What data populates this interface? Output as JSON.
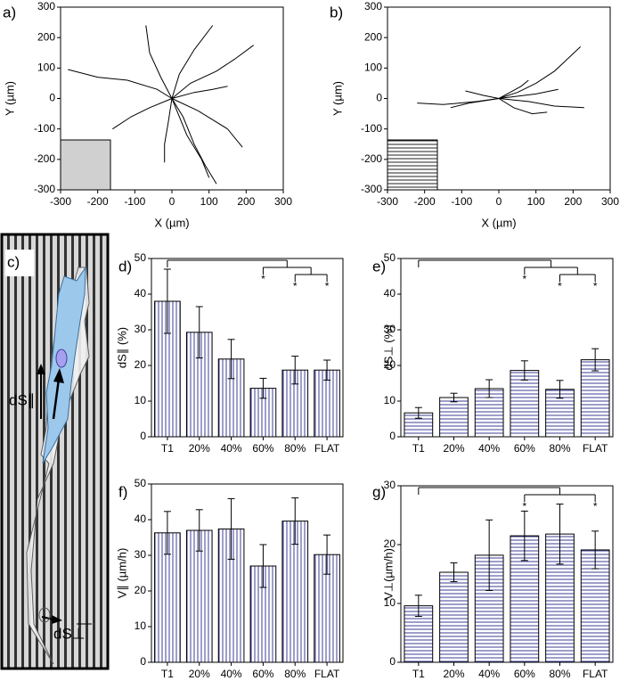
{
  "chart_data": [
    {
      "type": "line",
      "panel_label": "a)",
      "x_label": "X (µm)",
      "y_label": "Y (µm)",
      "color": "#000000",
      "xlim": [
        -300,
        300
      ],
      "ylim": [
        -300,
        300
      ],
      "xticks": [
        -300,
        -200,
        -100,
        0,
        100,
        200,
        300
      ],
      "yticks": [
        -300,
        -200,
        -100,
        0,
        100,
        200,
        300
      ],
      "series": [
        {
          "x": [
            0,
            -40,
            -120,
            -200,
            -280
          ],
          "y": [
            0,
            30,
            60,
            70,
            95
          ]
        },
        {
          "x": [
            0,
            50,
            120,
            170,
            220
          ],
          "y": [
            0,
            50,
            90,
            130,
            175
          ]
        },
        {
          "x": [
            0,
            30,
            60,
            90,
            120
          ],
          "y": [
            0,
            -60,
            -150,
            -220,
            -280
          ]
        },
        {
          "x": [
            0,
            -10,
            -20,
            -20
          ],
          "y": [
            0,
            -80,
            -150,
            -210
          ]
        },
        {
          "x": [
            0,
            20,
            60,
            110
          ],
          "y": [
            0,
            80,
            160,
            240
          ]
        },
        {
          "x": [
            0,
            -30,
            -60,
            -70
          ],
          "y": [
            0,
            70,
            150,
            240
          ]
        },
        {
          "x": [
            0,
            70,
            150,
            190
          ],
          "y": [
            0,
            -40,
            -100,
            -160
          ]
        },
        {
          "x": [
            0,
            -60,
            -110,
            -160
          ],
          "y": [
            0,
            -30,
            -60,
            -100
          ]
        },
        {
          "x": [
            0,
            60,
            110,
            150
          ],
          "y": [
            0,
            20,
            30,
            40
          ]
        },
        {
          "x": [
            0,
            40,
            80,
            100
          ],
          "y": [
            0,
            -120,
            -200,
            -260
          ]
        }
      ]
    },
    {
      "type": "line",
      "panel_label": "b)",
      "x_label": "X (µm)",
      "y_label": "Y (µm)",
      "color": "#000000",
      "xlim": [
        -300,
        300
      ],
      "ylim": [
        -300,
        300
      ],
      "xticks": [
        -300,
        -200,
        -100,
        0,
        100,
        200,
        300
      ],
      "yticks": [
        -300,
        -200,
        -100,
        0,
        100,
        200,
        300
      ],
      "series": [
        {
          "x": [
            0,
            -60,
            -150,
            -220
          ],
          "y": [
            0,
            -10,
            -20,
            -15
          ]
        },
        {
          "x": [
            0,
            50,
            100,
            150,
            220
          ],
          "y": [
            0,
            20,
            50,
            90,
            170
          ]
        },
        {
          "x": [
            0,
            80,
            150,
            230
          ],
          "y": [
            0,
            -10,
            -25,
            -30
          ]
        },
        {
          "x": [
            0,
            -40,
            -90
          ],
          "y": [
            0,
            10,
            25
          ]
        },
        {
          "x": [
            0,
            40,
            90,
            130
          ],
          "y": [
            0,
            -30,
            -50,
            -45
          ]
        },
        {
          "x": [
            0,
            30,
            60,
            80
          ],
          "y": [
            0,
            20,
            40,
            60
          ]
        },
        {
          "x": [
            0,
            -80,
            -130
          ],
          "y": [
            0,
            -15,
            -30
          ]
        },
        {
          "x": [
            0,
            100,
            160
          ],
          "y": [
            0,
            15,
            30
          ]
        }
      ]
    },
    {
      "type": "bar",
      "panel_label": "d)",
      "y_label": "dS∥ (%)",
      "color": "#3c3c96",
      "pattern": "vertical",
      "categories": [
        "T1",
        "20%",
        "40%",
        "60%",
        "80%",
        "FLAT"
      ],
      "values": [
        38,
        29.3,
        21.8,
        13.6,
        18.7,
        18.7
      ],
      "errors": [
        9,
        7.2,
        5.5,
        2.8,
        3.9,
        2.8
      ],
      "ylim": [
        0,
        50
      ],
      "yticks": [
        0,
        10,
        20,
        30,
        40,
        50
      ],
      "annotations": [
        "*",
        "*",
        "*"
      ]
    },
    {
      "type": "bar",
      "panel_label": "e)",
      "y_label": "dS⊥ (%)",
      "color": "#3c3c96",
      "pattern": "horizontal",
      "categories": [
        "T1",
        "20%",
        "40%",
        "60%",
        "80%",
        "FLAT"
      ],
      "values": [
        6.7,
        11,
        13.5,
        18.6,
        13.3,
        21.6
      ],
      "errors": [
        1.5,
        1.2,
        2.5,
        2.7,
        2.5,
        3.1
      ],
      "ylim": [
        0,
        50
      ],
      "yticks": [
        0,
        10,
        20,
        30,
        40,
        50
      ],
      "annotations": [
        "*",
        "*",
        "*"
      ]
    },
    {
      "type": "bar",
      "panel_label": "f)",
      "y_label": "V∥ (µm/h)",
      "color": "#3c3c96",
      "pattern": "vertical",
      "categories": [
        "T1",
        "20%",
        "40%",
        "60%",
        "80%",
        "FLAT"
      ],
      "values": [
        36.3,
        37,
        37.4,
        27,
        39.6,
        30.2
      ],
      "errors": [
        6,
        5.8,
        8.5,
        6,
        6.5,
        5.5
      ],
      "ylim": [
        0,
        50
      ],
      "yticks": [
        0,
        10,
        20,
        30,
        40,
        50
      ]
    },
    {
      "type": "bar",
      "panel_label": "g)",
      "y_label": "V⊥(µm/h)",
      "color": "#3c3c96",
      "pattern": "horizontal",
      "categories": [
        "T1",
        "20%",
        "40%",
        "60%",
        "80%",
        "FLAT"
      ],
      "values": [
        9.6,
        15.3,
        18.2,
        21.5,
        21.8,
        19.1
      ],
      "errors": [
        1.8,
        1.6,
        6,
        4.2,
        5.1,
        3.2
      ],
      "ylim": [
        0,
        30
      ],
      "yticks": [
        0,
        10,
        20,
        30
      ],
      "annotations": [
        "*",
        "*"
      ]
    }
  ],
  "diagram": {
    "panel_label": "c)",
    "labels": [
      "dS∥",
      "dS⊥"
    ]
  }
}
